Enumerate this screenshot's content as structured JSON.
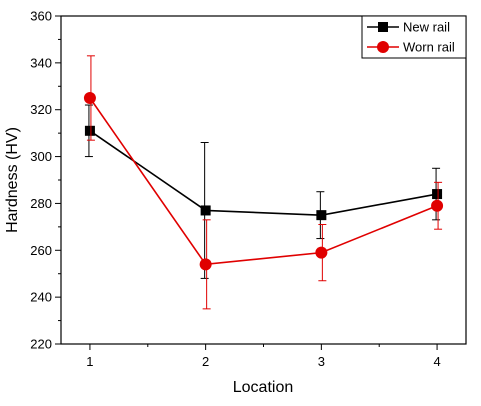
{
  "chart_data": {
    "type": "line",
    "xlabel": "Location",
    "ylabel": "Hardness (HV)",
    "xlim": [
      0.75,
      4.25
    ],
    "ylim": [
      220,
      360
    ],
    "xticks": [
      1,
      2,
      3,
      4
    ],
    "yticks": [
      220,
      240,
      260,
      280,
      300,
      320,
      340,
      360
    ],
    "x": [
      1,
      2,
      3,
      4
    ],
    "legend_position": "top-right",
    "grid": false,
    "series": [
      {
        "name": "New rail",
        "color": "#000000",
        "marker": "square",
        "values": [
          311,
          277,
          275,
          284
        ],
        "error": [
          11,
          29,
          10,
          11
        ]
      },
      {
        "name": "Worn rail",
        "color": "#e00000",
        "marker": "circle",
        "values": [
          325,
          254,
          259,
          279
        ],
        "error": [
          18,
          19,
          12,
          10
        ]
      }
    ]
  }
}
